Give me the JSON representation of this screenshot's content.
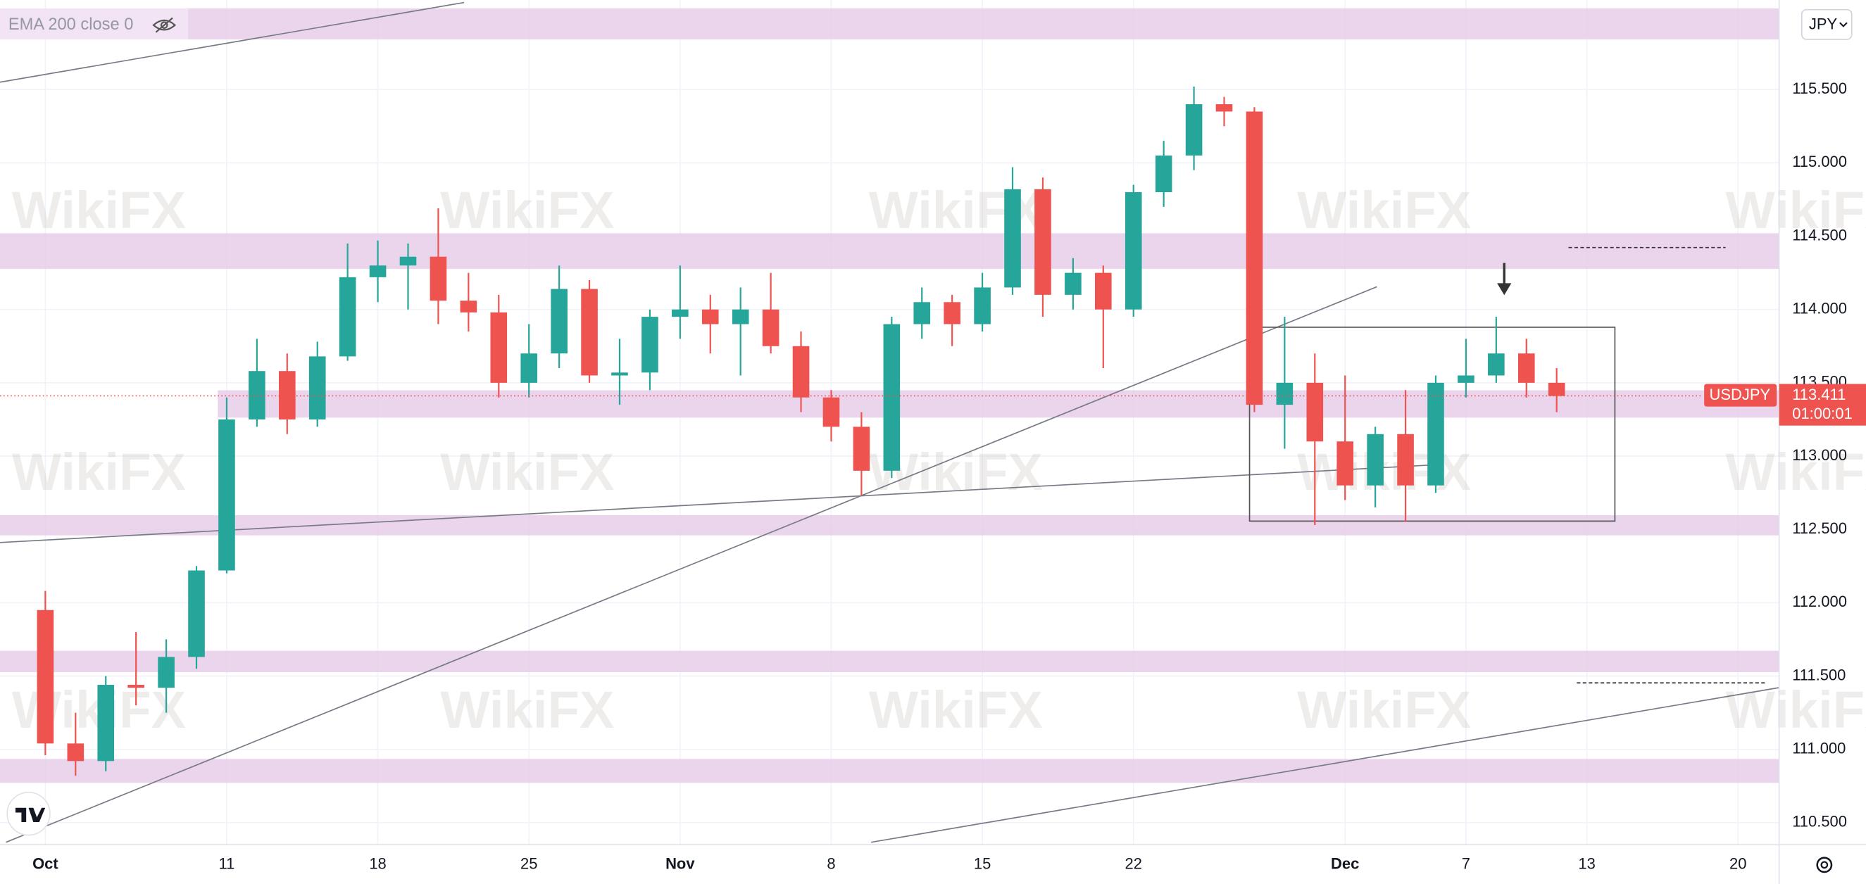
{
  "chart_data": {
    "type": "candlestick",
    "indicator_label": "EMA 200 close 0",
    "currency": "JPY",
    "watermark": "WikiFX",
    "last_price": 113.411,
    "countdown": "01:00:01",
    "up_color": "#26a69a",
    "down_color": "#ef5350",
    "x": [
      0,
      1,
      2,
      3,
      4,
      5,
      6,
      7,
      8,
      9,
      10,
      11,
      12,
      13,
      14,
      15,
      16,
      17,
      18,
      19,
      20,
      21,
      22,
      23,
      24,
      25,
      26,
      27,
      28,
      29,
      30,
      31,
      32,
      33,
      34,
      35,
      36,
      37,
      38,
      39,
      40,
      41,
      42,
      43,
      44,
      45,
      46,
      47,
      48,
      49,
      50
    ],
    "series": [
      {
        "name": "USDJPY",
        "open": [
          111.95,
          111.04,
          110.92,
          111.44,
          111.42,
          111.63,
          112.22,
          113.25,
          113.58,
          113.25,
          113.68,
          114.22,
          114.3,
          114.36,
          114.06,
          113.98,
          113.5,
          113.7,
          114.14,
          113.55,
          113.57,
          113.95,
          114.0,
          113.9,
          114.0,
          113.75,
          113.4,
          113.2,
          112.9,
          113.9,
          114.05,
          113.9,
          114.15,
          114.82,
          114.1,
          114.25,
          114.0,
          114.8,
          115.05,
          115.4,
          115.35,
          113.35,
          113.5,
          113.1,
          112.8,
          113.15,
          112.8,
          113.5,
          113.55,
          113.7,
          113.5
        ],
        "high": [
          112.08,
          111.25,
          111.5,
          111.8,
          111.75,
          112.25,
          113.4,
          113.8,
          113.7,
          113.78,
          114.45,
          114.47,
          114.45,
          114.69,
          114.25,
          114.1,
          113.9,
          114.3,
          114.2,
          113.8,
          114.0,
          114.3,
          114.1,
          114.15,
          114.25,
          113.85,
          113.45,
          113.3,
          113.95,
          114.15,
          114.1,
          114.25,
          114.97,
          114.9,
          114.35,
          114.3,
          114.85,
          115.15,
          115.52,
          115.45,
          115.38,
          113.95,
          113.7,
          113.55,
          113.2,
          113.45,
          113.55,
          113.8,
          113.95,
          113.8,
          113.6
        ],
        "low": [
          110.96,
          110.82,
          110.85,
          111.3,
          111.25,
          111.55,
          112.2,
          113.2,
          113.15,
          113.2,
          113.65,
          114.05,
          114.0,
          113.9,
          113.85,
          113.4,
          113.4,
          113.6,
          113.5,
          113.35,
          113.45,
          113.8,
          113.7,
          113.55,
          113.7,
          113.3,
          113.1,
          112.73,
          112.85,
          113.8,
          113.75,
          113.85,
          114.1,
          113.95,
          114.0,
          113.6,
          113.95,
          114.7,
          114.95,
          115.25,
          113.3,
          113.05,
          112.53,
          112.7,
          112.65,
          112.55,
          112.75,
          113.4,
          113.5,
          113.4,
          113.3
        ],
        "close": [
          111.04,
          110.92,
          111.44,
          111.42,
          111.63,
          112.22,
          113.25,
          113.58,
          113.25,
          113.68,
          114.22,
          114.3,
          114.36,
          114.06,
          113.98,
          113.5,
          113.7,
          114.14,
          113.55,
          113.57,
          113.95,
          114.0,
          113.9,
          114.0,
          113.75,
          113.4,
          113.2,
          112.9,
          113.9,
          114.05,
          113.9,
          114.15,
          114.82,
          114.1,
          114.25,
          114.0,
          114.8,
          115.05,
          115.4,
          115.35,
          113.35,
          113.5,
          113.1,
          112.8,
          113.15,
          112.8,
          113.5,
          113.55,
          113.7,
          113.5,
          113.41
        ]
      }
    ],
    "xlim": [
      -1.5,
      57.36
    ],
    "xticks": [
      {
        "value": 0,
        "label": "Oct"
      },
      {
        "value": 6,
        "label": "11"
      },
      {
        "value": 11,
        "label": "18"
      },
      {
        "value": 16,
        "label": "25"
      },
      {
        "value": 21,
        "label": "Nov"
      },
      {
        "value": 26,
        "label": "8"
      },
      {
        "value": 31,
        "label": "15"
      },
      {
        "value": 36,
        "label": "22"
      },
      {
        "value": 43,
        "label": "Dec"
      },
      {
        "value": 47,
        "label": "7"
      },
      {
        "value": 51,
        "label": "13"
      },
      {
        "value": 56,
        "label": "20"
      }
    ],
    "ylim": [
      110.35,
      116.11
    ],
    "yticks": [
      {
        "value": 110.5,
        "label": "110.500"
      },
      {
        "value": 111,
        "label": "111.000"
      },
      {
        "value": 111.5,
        "label": "111.500"
      },
      {
        "value": 112,
        "label": "112.000"
      },
      {
        "value": 112.5,
        "label": "112.500"
      },
      {
        "value": 113,
        "label": "113.000"
      },
      {
        "value": 113.5,
        "label": "113.500"
      },
      {
        "value": 114,
        "label": "114.000"
      },
      {
        "value": 114.5,
        "label": "114.500"
      },
      {
        "value": 115,
        "label": "115.000"
      },
      {
        "value": 115.5,
        "label": "115.500"
      }
    ],
    "grid": true
  }
}
